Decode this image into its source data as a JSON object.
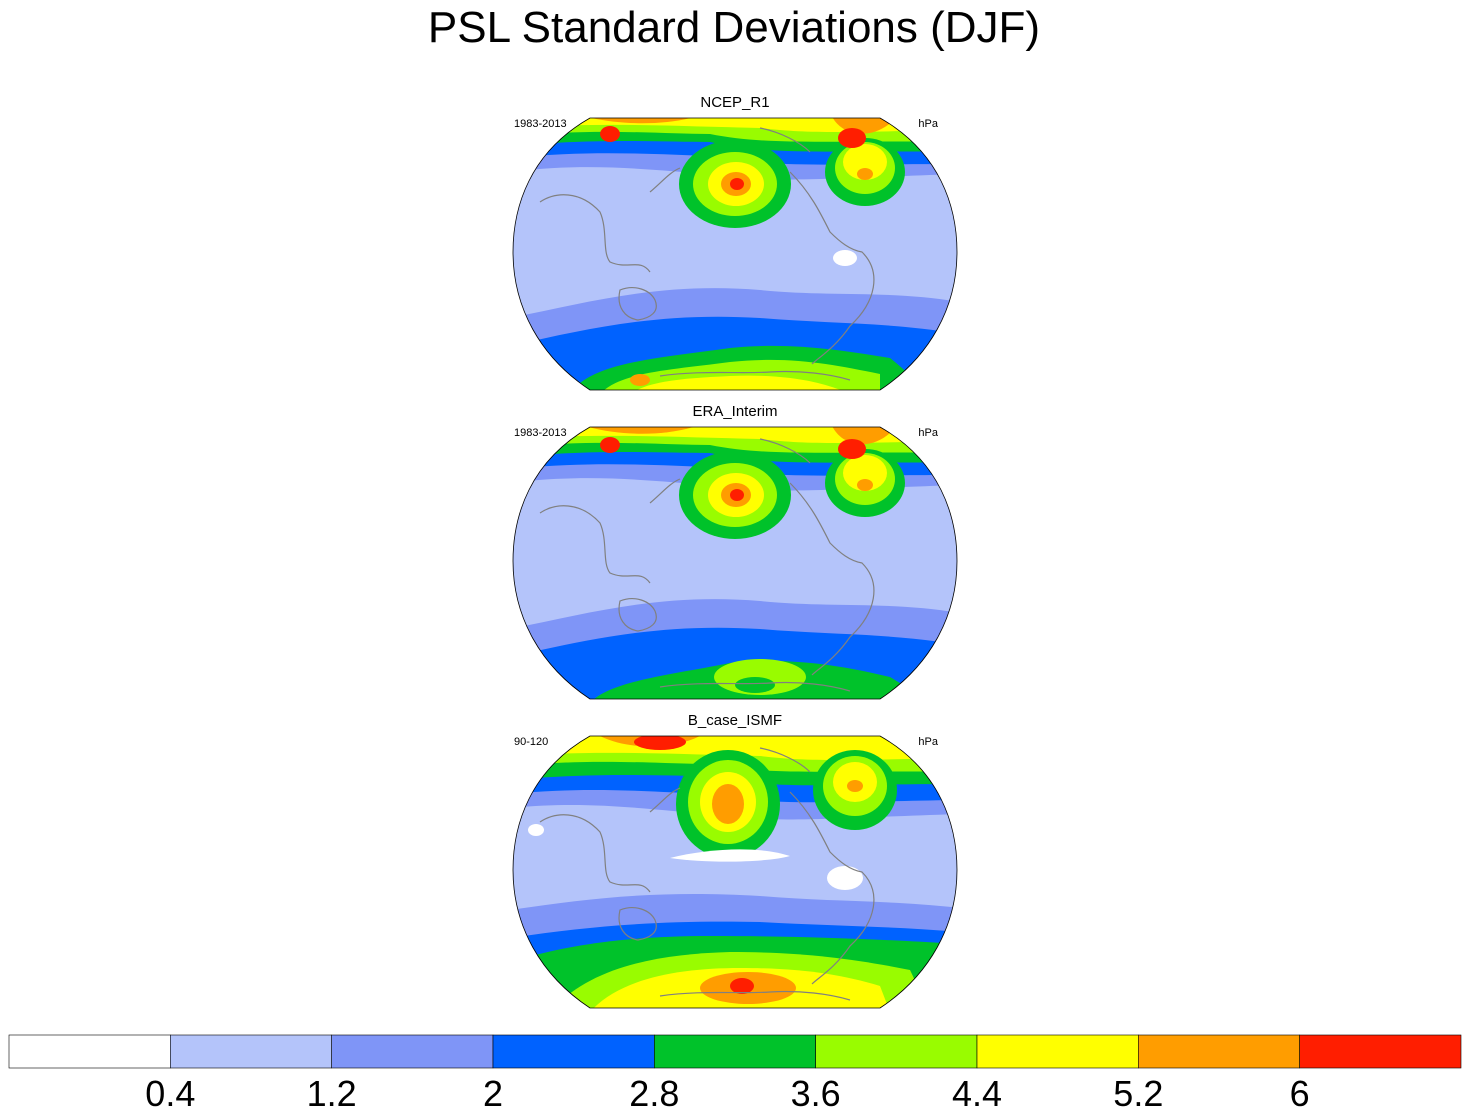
{
  "title": "PSL Standard Deviations (DJF)",
  "panels": [
    {
      "title": "NCEP_R1",
      "period": "1983-2013",
      "units": "hPa"
    },
    {
      "title": "ERA_Interim",
      "period": "1983-2013",
      "units": "hPa"
    },
    {
      "title": "B_case_ISMF",
      "period": "90-120",
      "units": "hPa"
    }
  ],
  "colorbar": {
    "colors": [
      "#ffffff",
      "#b4c4fa",
      "#7f95f7",
      "#0062ff",
      "#00c22a",
      "#99fc00",
      "#ffff00",
      "#ff9d00",
      "#ff1e00"
    ],
    "labels": [
      "0.4",
      "1.2",
      "2",
      "2.8",
      "3.6",
      "4.4",
      "5.2",
      "6"
    ]
  },
  "colors": {
    "coastline": "#808080",
    "background": "#ffffff"
  }
}
